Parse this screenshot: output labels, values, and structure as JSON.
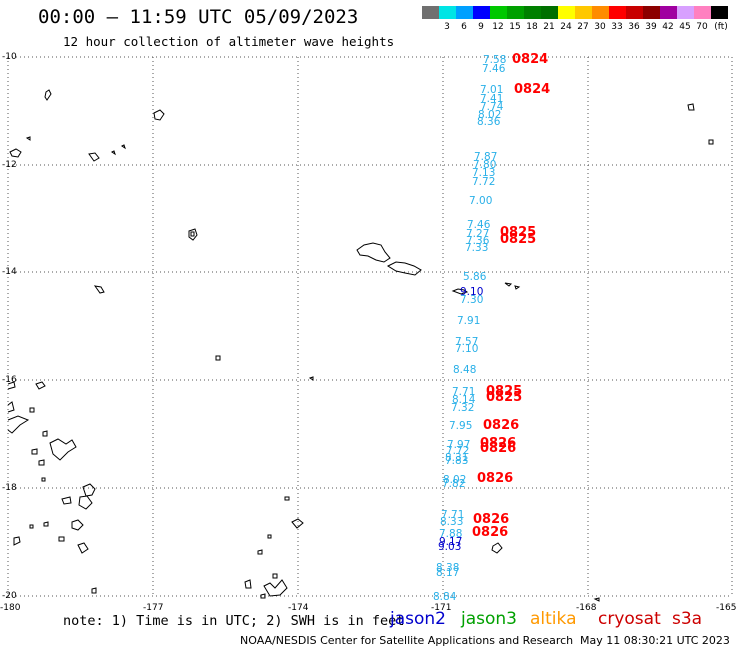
{
  "header": {
    "title": "00:00 — 11:59 UTC 05/09/2023",
    "subtitle": "12 hour collection of altimeter wave heights"
  },
  "colorbar": {
    "unit": "(ft)",
    "bins": [
      {
        "color": "#707070",
        "label": ""
      },
      {
        "color": "#00e5e5",
        "label": "3"
      },
      {
        "color": "#00a0ff",
        "label": "6"
      },
      {
        "color": "#0000ff",
        "label": "9"
      },
      {
        "color": "#00c800",
        "label": "12"
      },
      {
        "color": "#00a000",
        "label": "15"
      },
      {
        "color": "#008000",
        "label": "18"
      },
      {
        "color": "#007000",
        "label": "21"
      },
      {
        "color": "#ffff00",
        "label": "24"
      },
      {
        "color": "#ffc800",
        "label": "27"
      },
      {
        "color": "#ff8c00",
        "label": "30"
      },
      {
        "color": "#ff0000",
        "label": "33"
      },
      {
        "color": "#c80000",
        "label": "36"
      },
      {
        "color": "#8c0000",
        "label": "39"
      },
      {
        "color": "#a000a0",
        "label": "42"
      },
      {
        "color": "#d8a0ff",
        "label": "45"
      },
      {
        "color": "#ff80c0",
        "label": "70"
      },
      {
        "color": "#000000",
        "label": ""
      }
    ]
  },
  "axes": {
    "lat_labels": [
      "-10",
      "-12",
      "-14",
      "-16",
      "-18",
      "-20"
    ],
    "lon_labels": [
      "-180",
      "-177",
      "-174",
      "-171",
      "-168",
      "-165"
    ]
  },
  "observations": [
    {
      "v": "7.58",
      "c": "#2ab0e8"
    },
    {
      "v": "7.46",
      "c": "#2ab0e8"
    },
    {
      "v": "7.01",
      "c": "#2ab0e8"
    },
    {
      "v": "7.41",
      "c": "#2ab0e8"
    },
    {
      "v": "7.74",
      "c": "#2ab0e8"
    },
    {
      "v": "8.02",
      "c": "#2ab0e8"
    },
    {
      "v": "8.36",
      "c": "#2ab0e8"
    },
    {
      "v": "7.87",
      "c": "#2ab0e8"
    },
    {
      "v": "7.80",
      "c": "#2ab0e8"
    },
    {
      "v": "7.13",
      "c": "#2ab0e8"
    },
    {
      "v": "7.72",
      "c": "#2ab0e8"
    },
    {
      "v": "7.00",
      "c": "#2ab0e8"
    },
    {
      "v": "7.46",
      "c": "#2ab0e8"
    },
    {
      "v": "7.27",
      "c": "#2ab0e8"
    },
    {
      "v": "7.36",
      "c": "#2ab0e8"
    },
    {
      "v": "7.33",
      "c": "#2ab0e8"
    },
    {
      "v": "5.86",
      "c": "#2ab0e8"
    },
    {
      "v": "9.10",
      "c": "#0000cc"
    },
    {
      "v": "7.30",
      "c": "#2ab0e8"
    },
    {
      "v": "7.91",
      "c": "#2ab0e8"
    },
    {
      "v": "7.57",
      "c": "#2ab0e8"
    },
    {
      "v": "7.10",
      "c": "#2ab0e8"
    },
    {
      "v": "8.48",
      "c": "#2ab0e8"
    },
    {
      "v": "7.71",
      "c": "#2ab0e8"
    },
    {
      "v": "8.14",
      "c": "#2ab0e8"
    },
    {
      "v": "7.32",
      "c": "#2ab0e8"
    },
    {
      "v": "7.95",
      "c": "#2ab0e8"
    },
    {
      "v": "7.97",
      "c": "#2ab0e8"
    },
    {
      "v": "7.72",
      "c": "#2ab0e8"
    },
    {
      "v": "8.31",
      "c": "#2ab0e8"
    },
    {
      "v": "7.83",
      "c": "#2ab0e8"
    },
    {
      "v": "8.02",
      "c": "#2ab0e8"
    },
    {
      "v": "7.82",
      "c": "#2ab0e8"
    },
    {
      "v": "7.71",
      "c": "#2ab0e8"
    },
    {
      "v": "8.33",
      "c": "#2ab0e8"
    },
    {
      "v": "7.88",
      "c": "#2ab0e8"
    },
    {
      "v": "9.17",
      "c": "#0000cc"
    },
    {
      "v": "9.03",
      "c": "#0000cc"
    },
    {
      "v": "8.38",
      "c": "#2ab0e8"
    },
    {
      "v": "8.17",
      "c": "#2ab0e8"
    },
    {
      "v": "8.84",
      "c": "#2ab0e8"
    }
  ],
  "pass_times": [
    "0824",
    "0824",
    "0825",
    "0825",
    "0825",
    "0825",
    "0826",
    "0826",
    "0826",
    "0826",
    "0826",
    "0826"
  ],
  "footer": {
    "note": "note:  1) Time is in UTC; 2) SWH is in feet",
    "satellites": [
      {
        "name": "jason2",
        "color": "#0000cc"
      },
      {
        "name": "jason3",
        "color": "#00a000"
      },
      {
        "name": "altika",
        "color": "#ff9900"
      },
      {
        "name": "cryosat",
        "color": "#cc0000"
      },
      {
        "name": "s3a",
        "color": "#cc0000"
      }
    ],
    "credit": "NOAA/NESDIS Center for Satellite Applications and Research",
    "timestamp": "May 11 08:30:21 UTC 2023"
  }
}
